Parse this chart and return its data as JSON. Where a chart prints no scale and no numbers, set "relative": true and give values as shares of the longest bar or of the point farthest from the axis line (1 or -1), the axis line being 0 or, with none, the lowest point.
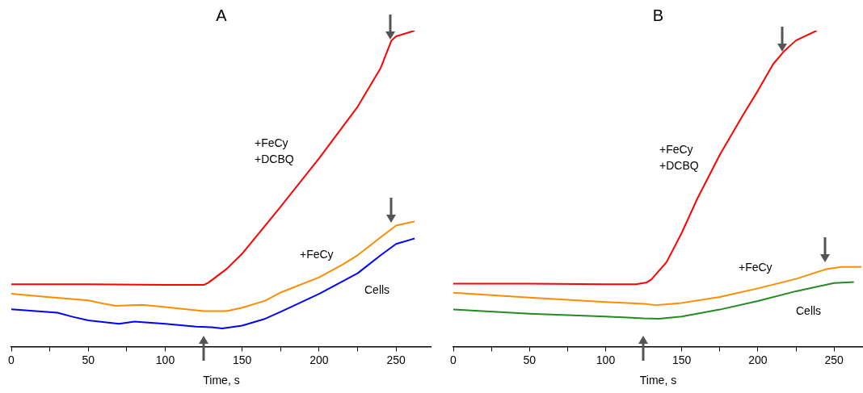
{
  "chart_data": [
    {
      "type": "line",
      "title": "A",
      "xlabel": "Time, s",
      "relative": true,
      "xlim": [
        0,
        273
      ],
      "xticks": [
        0,
        {
          "value": 25,
          "label": null
        },
        50,
        {
          "value": 75,
          "label": null
        },
        100,
        {
          "value": 125,
          "label": null
        },
        150,
        {
          "value": 175,
          "label": null
        },
        200,
        {
          "value": 225,
          "label": null
        },
        250
      ],
      "tick_labels": "x",
      "grid": false,
      "legend": false,
      "marker": "none",
      "line_style": "solid",
      "series": [
        {
          "name": "+FeCy\n+DCBQ",
          "color": "#ff0000",
          "x": [
            0,
            50,
            100,
            125,
            128,
            140,
            150,
            175,
            200,
            225,
            240,
            247,
            250,
            262
          ],
          "values": [
            0.197,
            0.197,
            0.195,
            0.195,
            0.202,
            0.246,
            0.294,
            0.443,
            0.596,
            0.759,
            0.882,
            0.969,
            0.982,
            1.0
          ]
        },
        {
          "name": "+FeCy",
          "color": "#ff8c00",
          "x": [
            0,
            25,
            50,
            60,
            68,
            85,
            100,
            125,
            140,
            150,
            165,
            175,
            200,
            215,
            225,
            240,
            250,
            262
          ],
          "values": [
            0.167,
            0.156,
            0.146,
            0.136,
            0.129,
            0.132,
            0.125,
            0.112,
            0.112,
            0.123,
            0.145,
            0.171,
            0.219,
            0.259,
            0.289,
            0.346,
            0.383,
            0.396
          ]
        },
        {
          "name": "Cells",
          "color": "#0000ff",
          "x": [
            0,
            30,
            40,
            50,
            70,
            80,
            100,
            120,
            130,
            137,
            150,
            165,
            175,
            200,
            225,
            240,
            250,
            262
          ],
          "values": [
            0.118,
            0.107,
            0.094,
            0.083,
            0.072,
            0.079,
            0.072,
            0.063,
            0.061,
            0.057,
            0.066,
            0.088,
            0.11,
            0.167,
            0.232,
            0.289,
            0.325,
            0.342
          ]
        }
      ]
    },
    {
      "type": "line",
      "title": "B",
      "xlabel": "Time, s",
      "relative": true,
      "xlim": [
        0,
        269
      ],
      "xticks": [
        0,
        {
          "value": 25,
          "label": null
        },
        50,
        {
          "value": 75,
          "label": null
        },
        100,
        {
          "value": 125,
          "label": null
        },
        150,
        {
          "value": 175,
          "label": null
        },
        200,
        {
          "value": 225,
          "label": null
        },
        250
      ],
      "tick_labels": "x",
      "grid": false,
      "legend": false,
      "marker": "none",
      "line_style": "solid",
      "series": [
        {
          "name": "+FeCy\n+DCBQ",
          "color": "#ff0000",
          "x": [
            0,
            50,
            100,
            120,
            127,
            130,
            140,
            150,
            160,
            175,
            190,
            200,
            210,
            217,
            225,
            238.5
          ],
          "values": [
            0.199,
            0.199,
            0.197,
            0.197,
            0.203,
            0.212,
            0.267,
            0.36,
            0.466,
            0.607,
            0.731,
            0.81,
            0.894,
            0.934,
            0.969,
            1.0
          ]
        },
        {
          "name": "+FeCy",
          "color": "#ff8c00",
          "x": [
            0,
            50,
            100,
            125,
            133,
            150,
            175,
            200,
            225,
            245,
            255,
            268
          ],
          "values": [
            0.17,
            0.155,
            0.141,
            0.135,
            0.131,
            0.138,
            0.157,
            0.184,
            0.214,
            0.245,
            0.252,
            0.252
          ]
        },
        {
          "name": "Cells",
          "color": "#228b22",
          "x": [
            0,
            50,
            100,
            125,
            135,
            150,
            175,
            200,
            225,
            250,
            263
          ],
          "values": [
            0.117,
            0.104,
            0.095,
            0.089,
            0.088,
            0.095,
            0.117,
            0.144,
            0.175,
            0.201,
            0.204
          ]
        }
      ]
    }
  ]
}
